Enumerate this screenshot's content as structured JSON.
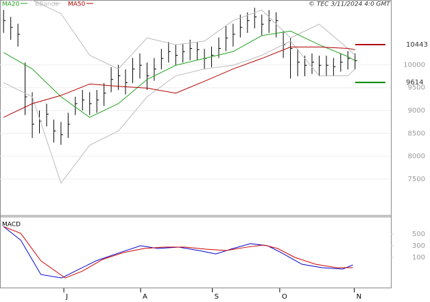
{
  "chart_data": [
    {
      "type": "ohlc",
      "legend": [
        {
          "name": "MA20",
          "color": "#22a322"
        },
        {
          "name": "BBands",
          "color": "#bbbbbb"
        },
        {
          "name": "MA50",
          "color": "#b00000"
        }
      ],
      "credit": "© TEC 3/11/2024 4:0 GMT",
      "color": "#000000",
      "xlim": [
        -0.5,
        54
      ],
      "ylim": [
        6700,
        11420
      ],
      "yticks": [
        7500,
        8000,
        8500,
        9000,
        9500,
        10000
      ],
      "grid": true,
      "high": [
        11200,
        11050,
        10900,
        10050,
        9400,
        9000,
        9150,
        8800,
        8750,
        8950,
        9300,
        9450,
        9400,
        9450,
        9600,
        9950,
        10000,
        9900,
        10150,
        10250,
        10050,
        10150,
        10350,
        10500,
        10450,
        10450,
        10550,
        10500,
        10350,
        10400,
        10600,
        10850,
        10900,
        11100,
        11150,
        11250,
        11100,
        11200,
        11150,
        10750,
        10600,
        10350,
        10200,
        10250,
        10200,
        10200,
        10150,
        10250,
        10300,
        10250
      ],
      "low": [
        10700,
        10550,
        10400,
        8900,
        8400,
        8500,
        8650,
        8300,
        8250,
        8400,
        8900,
        9000,
        8900,
        8950,
        9100,
        9400,
        9450,
        9350,
        9600,
        9700,
        9450,
        9650,
        9900,
        10050,
        10000,
        10050,
        10100,
        10100,
        9900,
        9950,
        10150,
        10300,
        10400,
        10600,
        10700,
        10800,
        10650,
        10700,
        10600,
        10150,
        9700,
        9750,
        9750,
        9800,
        9750,
        9750,
        9750,
        9850,
        9900,
        9900
      ],
      "close": [
        10970,
        10820,
        10670,
        9300,
        8700,
        8770,
        8920,
        8550,
        8470,
        8700,
        9150,
        9230,
        9150,
        9230,
        9380,
        9680,
        9760,
        9610,
        9910,
        9990,
        9760,
        9910,
        10140,
        10290,
        10210,
        10290,
        10360,
        10330,
        10140,
        10210,
        10360,
        10590,
        10670,
        10820,
        10970,
        11050,
        10890,
        10970,
        10970,
        10440,
        10360,
        10060,
        9990,
        10060,
        9990,
        9990,
        9960,
        10060,
        10140,
        10090
      ],
      "series": [
        {
          "name": "BBands",
          "color": "#bbbbbb",
          "x": [
            0,
            4,
            8,
            12,
            16,
            20,
            24,
            28,
            32,
            36,
            40,
            44,
            48,
            49
          ],
          "values": [
            11420,
            11420,
            11120,
            10210,
            9910,
            10590,
            10440,
            10520,
            10970,
            11200,
            10590,
            10890,
            10360,
            10210
          ]
        },
        {
          "name": "BBands",
          "color": "#bbbbbb",
          "x": [
            0,
            4,
            8,
            12,
            16,
            20,
            24,
            28,
            32,
            36,
            40,
            44,
            48,
            49
          ],
          "values": [
            9610,
            9300,
            7410,
            8240,
            8550,
            9300,
            9760,
            9910,
            9990,
            10210,
            10520,
            9760,
            9760,
            9910
          ]
        },
        {
          "name": "MA20",
          "color": "#22a322",
          "x": [
            0,
            4,
            8,
            12,
            16,
            20,
            24,
            28,
            32,
            36,
            40,
            44,
            48,
            49
          ],
          "values": [
            10270,
            9910,
            9300,
            8850,
            9150,
            9680,
            9990,
            10140,
            10290,
            10640,
            10740,
            10440,
            10180,
            10090
          ]
        },
        {
          "name": "MA50",
          "color": "#b00000",
          "x": [
            0,
            4,
            8,
            12,
            16,
            20,
            24,
            28,
            32,
            36,
            40,
            44,
            48,
            49
          ],
          "values": [
            8850,
            9150,
            9330,
            9580,
            9530,
            9490,
            9380,
            9640,
            9910,
            10140,
            10390,
            10390,
            10360,
            10330
          ]
        }
      ],
      "last_labels": [
        {
          "value": 10443,
          "label": "10443",
          "color": "#b00000"
        },
        {
          "value": 9614,
          "label": "9614",
          "color": "#008800"
        }
      ]
    },
    {
      "type": "line",
      "title": "MACD",
      "xlim": [
        -0.5,
        54
      ],
      "ylim": [
        -430,
        795
      ],
      "yticks": [
        100,
        300,
        500
      ],
      "xticks": [
        {
          "value": 8.4,
          "label": "J"
        },
        {
          "value": 19.1,
          "label": "A"
        },
        {
          "value": 29.1,
          "label": "S"
        },
        {
          "value": 38.5,
          "label": "O"
        },
        {
          "value": 48.9,
          "label": "N"
        }
      ],
      "series": [
        {
          "name": "MACD",
          "color": "#0000cc",
          "x": [
            0,
            2.4,
            5.2,
            8.1,
            10,
            12.9,
            16.2,
            19.1,
            21.5,
            24.4,
            27.2,
            29.6,
            32,
            34.4,
            36.8,
            38.7,
            41.6,
            44.4,
            47.3,
            48.7
          ],
          "values": [
            629,
            394,
            -194,
            -253,
            -135,
            41,
            182,
            300,
            253,
            276,
            218,
            159,
            253,
            335,
            300,
            182,
            -18,
            -76,
            -100,
            -29
          ]
        },
        {
          "name": "Signal",
          "color": "#cc0000",
          "x": [
            0,
            2.4,
            5.2,
            8.6,
            11,
            13.8,
            16.7,
            19.6,
            22.4,
            25.3,
            28.2,
            31,
            33.9,
            36.3,
            38.2,
            40.6,
            43.5,
            46.4,
            48.7
          ],
          "values": [
            629,
            512,
            41,
            -253,
            -135,
            65,
            182,
            253,
            276,
            276,
            241,
            218,
            276,
            312,
            253,
            100,
            -18,
            -76,
            -76
          ]
        }
      ]
    }
  ]
}
